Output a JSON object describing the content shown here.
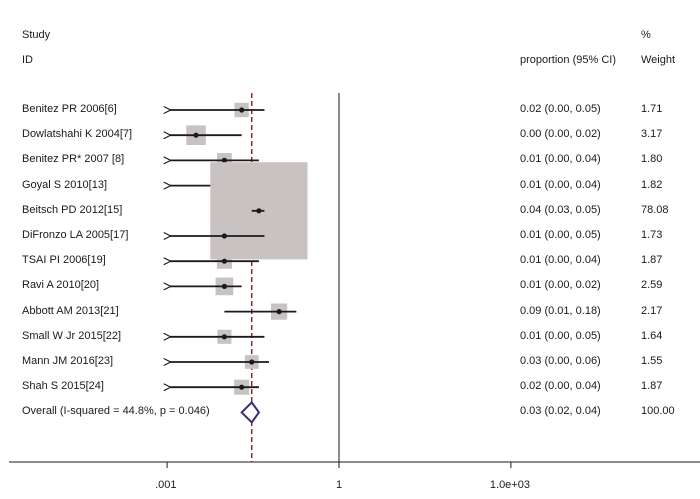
{
  "header": {
    "study_label": "Study",
    "id_label": "ID",
    "ci_label": "proportion (95% CI)",
    "pct_label": "%",
    "weight_label": "Weight"
  },
  "chart_data": {
    "type": "forest",
    "x_scale": "log",
    "x_ticks": [
      0.001,
      1,
      1000
    ],
    "x_tick_labels": [
      ".001",
      "1",
      "1.0e+03"
    ],
    "null_line": 1,
    "pooled_reference_line": 0.03,
    "colors": {
      "study_marker": "#1a1a1a",
      "weight_box": "#c9c2c2",
      "reference_line": "#8b1a1a",
      "overall_diamond": "#3a2b6e"
    },
    "studies": [
      {
        "id": "Benitez PR 2006[6]",
        "est": 0.02,
        "lo": 0.0,
        "hi": 0.05,
        "ci_text": "0.02 (0.00, 0.05)",
        "weight": 1.71,
        "weight_text": "1.71"
      },
      {
        "id": "Dowlatshahi K 2004[7]",
        "est": 0.0,
        "lo": 0.0,
        "hi": 0.02,
        "ci_text": "0.00 (0.00, 0.02)",
        "weight": 3.17,
        "weight_text": "3.17"
      },
      {
        "id": "Benitez PR* 2007 [8]",
        "est": 0.01,
        "lo": 0.0,
        "hi": 0.04,
        "ci_text": "0.01 (0.00, 0.04)",
        "weight": 1.8,
        "weight_text": "1.80"
      },
      {
        "id": "Goyal S 2010[13]",
        "est": 0.01,
        "lo": 0.0,
        "hi": 0.04,
        "ci_text": "0.01 (0.00, 0.04)",
        "weight": 1.82,
        "weight_text": "1.82"
      },
      {
        "id": "Beitsch PD 2012[15]",
        "est": 0.04,
        "lo": 0.03,
        "hi": 0.05,
        "ci_text": "0.04 (0.03, 0.05)",
        "weight": 78.08,
        "weight_text": "78.08"
      },
      {
        "id": "DiFronzo LA 2005[17]",
        "est": 0.01,
        "lo": 0.0,
        "hi": 0.05,
        "ci_text": "0.01 (0.00, 0.05)",
        "weight": 1.73,
        "weight_text": "1.73"
      },
      {
        "id": "TSAI PI 2006[19]",
        "est": 0.01,
        "lo": 0.0,
        "hi": 0.04,
        "ci_text": "0.01 (0.00, 0.04)",
        "weight": 1.87,
        "weight_text": "1.87"
      },
      {
        "id": "Ravi A 2010[20]",
        "est": 0.01,
        "lo": 0.0,
        "hi": 0.02,
        "ci_text": "0.01 (0.00, 0.02)",
        "weight": 2.59,
        "weight_text": "2.59"
      },
      {
        "id": "Abbott AM 2013[21]",
        "est": 0.09,
        "lo": 0.01,
        "hi": 0.18,
        "ci_text": "0.09 (0.01, 0.18)",
        "weight": 2.17,
        "weight_text": "2.17"
      },
      {
        "id": "Small W Jr 2015[22]",
        "est": 0.01,
        "lo": 0.0,
        "hi": 0.05,
        "ci_text": "0.01 (0.00, 0.05)",
        "weight": 1.64,
        "weight_text": "1.64"
      },
      {
        "id": "Mann JM 2016[23]",
        "est": 0.03,
        "lo": 0.0,
        "hi": 0.06,
        "ci_text": "0.03 (0.00, 0.06)",
        "weight": 1.55,
        "weight_text": "1.55"
      },
      {
        "id": "Shah S 2015[24]",
        "est": 0.02,
        "lo": 0.0,
        "hi": 0.04,
        "ci_text": "0.02 (0.00, 0.04)",
        "weight": 1.87,
        "weight_text": "1.87"
      }
    ],
    "overall": {
      "label": "Overall  (I-squared = 44.8%, p = 0.046)",
      "i_squared": 44.8,
      "p_value": 0.046,
      "est": 0.03,
      "lo": 0.02,
      "hi": 0.04,
      "ci_text": "0.03 (0.02, 0.04)",
      "weight": 100.0,
      "weight_text": "100.00"
    }
  }
}
